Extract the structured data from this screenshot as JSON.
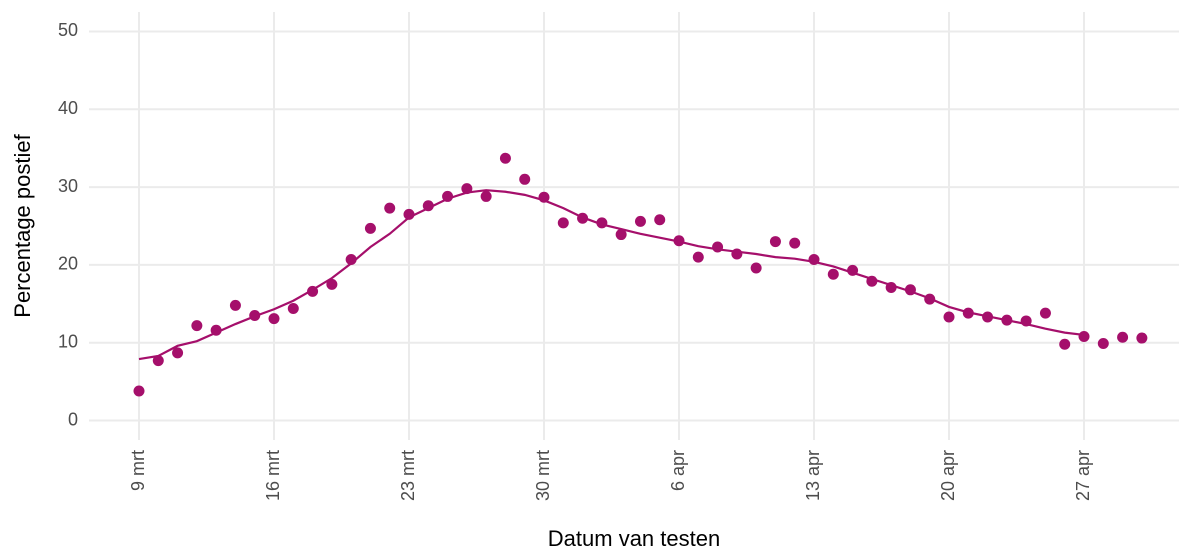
{
  "chart_data": {
    "type": "scatter",
    "x_label": "Datum van testen",
    "y_label": "Percentage postief",
    "categories": [
      "9 mrt",
      null,
      null,
      null,
      null,
      null,
      null,
      "16 mrt",
      null,
      null,
      null,
      null,
      null,
      null,
      "23 mrt",
      null,
      null,
      null,
      null,
      null,
      null,
      "30 mrt",
      null,
      null,
      null,
      null,
      null,
      null,
      "6 apr",
      null,
      null,
      null,
      null,
      null,
      null,
      "13 apr",
      null,
      null,
      null,
      null,
      null,
      null,
      "20 apr",
      null,
      null,
      null,
      null,
      null,
      null,
      "27 apr",
      null,
      null,
      null
    ],
    "series": [
      {
        "mode": "markers",
        "color": "#a50f6b",
        "values": [
          3.8,
          7.7,
          8.7,
          12.2,
          11.6,
          14.8,
          13.5,
          13.1,
          14.4,
          16.6,
          17.5,
          20.7,
          24.7,
          27.3,
          26.5,
          27.6,
          28.8,
          29.8,
          28.8,
          33.7,
          31.0,
          28.7,
          25.4,
          26.0,
          25.4,
          23.9,
          25.6,
          25.8,
          23.1,
          21.0,
          22.3,
          21.4,
          19.6,
          23.0,
          22.8,
          20.7,
          18.8,
          19.3,
          17.9,
          17.1,
          16.8,
          15.6,
          13.3,
          13.8,
          13.3,
          12.9,
          12.8,
          13.8,
          9.8,
          10.8,
          9.9,
          10.7,
          10.6
        ]
      },
      {
        "mode": "line",
        "color": "#a50f6b",
        "values": [
          7.9,
          8.3,
          9.6,
          10.2,
          11.3,
          12.4,
          13.4,
          14.3,
          15.4,
          16.8,
          18.3,
          20.2,
          22.3,
          24.0,
          26.1,
          27.3,
          28.5,
          29.3,
          29.6,
          29.4,
          29.0,
          28.3,
          27.3,
          26.1,
          25.2,
          24.6,
          24.0,
          23.5,
          23.0,
          22.4,
          22.0,
          21.7,
          21.4,
          21.0,
          20.8,
          20.4,
          19.8,
          19.0,
          18.2,
          17.4,
          16.6,
          15.7,
          14.6,
          13.9,
          13.4,
          12.9,
          12.4,
          11.8,
          11.3,
          11.0,
          null,
          null,
          null
        ]
      }
    ],
    "ylim": [
      -2.5,
      52.5
    ],
    "yticks": [
      0,
      10,
      20,
      30,
      40,
      50
    ],
    "grid": true
  }
}
